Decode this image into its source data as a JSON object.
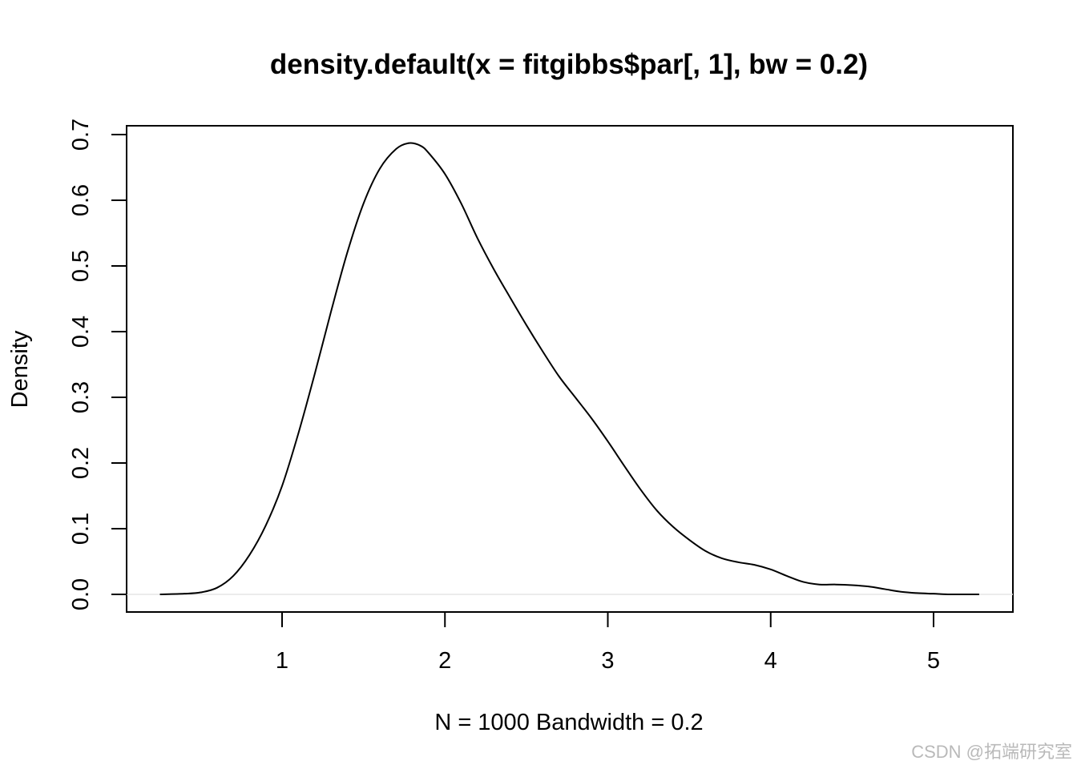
{
  "chart_data": {
    "type": "line",
    "title": "density.default(x = fitgibbs$par[, 1], bw = 0.2)",
    "xlabel": "N = 1000   Bandwidth = 0.2",
    "ylabel": "Density",
    "xlim": [
      0.25,
      5.28
    ],
    "ylim": [
      0.0,
      0.7
    ],
    "x_ticks": [
      "1",
      "2",
      "3",
      "4",
      "5"
    ],
    "y_ticks": [
      "0.0",
      "0.1",
      "0.2",
      "0.3",
      "0.4",
      "0.5",
      "0.6",
      "0.7"
    ],
    "grid": false,
    "legend": "none",
    "zero_line": true,
    "series": [
      {
        "x": [
          0.25,
          0.4,
          0.5,
          0.6,
          0.7,
          0.8,
          0.9,
          1.0,
          1.1,
          1.2,
          1.3,
          1.4,
          1.5,
          1.6,
          1.7,
          1.78,
          1.85,
          1.9,
          2.0,
          2.1,
          2.2,
          2.3,
          2.4,
          2.5,
          2.6,
          2.7,
          2.8,
          2.9,
          3.0,
          3.1,
          3.2,
          3.3,
          3.4,
          3.5,
          3.6,
          3.7,
          3.8,
          3.9,
          4.0,
          4.1,
          4.2,
          4.3,
          4.4,
          4.5,
          4.6,
          4.7,
          4.8,
          4.9,
          5.0,
          5.1,
          5.2,
          5.28
        ],
        "y": [
          0.0,
          0.001,
          0.003,
          0.01,
          0.028,
          0.06,
          0.105,
          0.165,
          0.245,
          0.335,
          0.43,
          0.52,
          0.595,
          0.648,
          0.678,
          0.687,
          0.683,
          0.672,
          0.64,
          0.595,
          0.542,
          0.495,
          0.452,
          0.41,
          0.37,
          0.332,
          0.3,
          0.268,
          0.233,
          0.196,
          0.16,
          0.128,
          0.103,
          0.083,
          0.066,
          0.055,
          0.049,
          0.045,
          0.038,
          0.028,
          0.019,
          0.015,
          0.015,
          0.014,
          0.012,
          0.008,
          0.004,
          0.002,
          0.001,
          0.0,
          0.0,
          0.0
        ],
        "color": "#000000"
      }
    ]
  },
  "watermark": "CSDN @拓端研究室"
}
